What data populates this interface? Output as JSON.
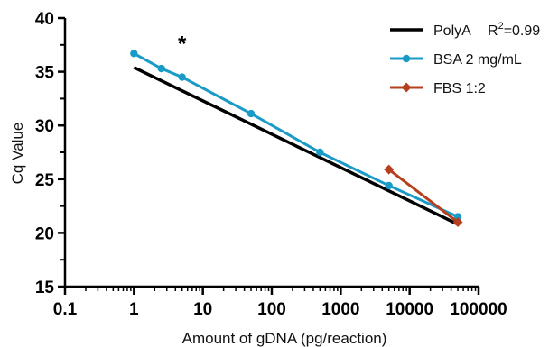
{
  "chart_data": {
    "type": "line",
    "title": "",
    "xlabel": "Amount of gDNA (pg/reaction)",
    "ylabel": "Cq Value",
    "xscale": "log",
    "xlim": [
      0.1,
      100000
    ],
    "ylim": [
      15,
      40
    ],
    "x_ticks": [
      0.1,
      1,
      10,
      100,
      1000,
      10000,
      100000
    ],
    "x_tick_labels": [
      "0.1",
      "1",
      "10",
      "100",
      "1000",
      "10000",
      "100000"
    ],
    "y_ticks": [
      15,
      20,
      25,
      30,
      35,
      40
    ],
    "y_tick_labels": [
      "15",
      "20",
      "25",
      "30",
      "35",
      "40"
    ],
    "grid": false,
    "legend_position": "top-right",
    "series": [
      {
        "name": "PolyA",
        "legend_extra": "R",
        "legend_sup": "2",
        "legend_tail": "=0.99",
        "color": "#000000",
        "marker": "none",
        "x": [
          1,
          50000
        ],
        "y": [
          35.4,
          20.8
        ]
      },
      {
        "name": "BSA 2 mg/mL",
        "color": "#1a9bc7",
        "marker": "circle",
        "x": [
          1,
          2.5,
          5,
          50,
          500,
          5000,
          50000
        ],
        "y": [
          36.7,
          35.3,
          34.5,
          31.1,
          27.5,
          24.4,
          21.5
        ]
      },
      {
        "name": "FBS 1:2",
        "color": "#b5401e",
        "marker": "diamond",
        "x": [
          5000,
          50000
        ],
        "y": [
          25.9,
          21.0
        ]
      }
    ],
    "annotations": [
      {
        "text": "*",
        "x": 5,
        "y": 37.6
      }
    ]
  }
}
